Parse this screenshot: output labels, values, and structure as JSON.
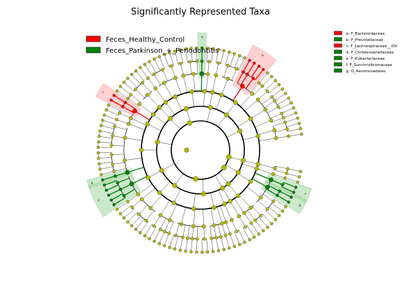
{
  "chart_data": {
    "type": "cladogram",
    "title": "Significantly Represented Taxa",
    "group_legend": [
      {
        "label": "Feces_Healthy_Control",
        "color": "#ff0000"
      },
      {
        "label": "Feces_Parkinson_+_Periodontitis",
        "color": "#008000"
      }
    ],
    "taxa_legend": [
      {
        "letter": "a",
        "label": "a: F_Bacteroidaceae",
        "color": "#ff0000"
      },
      {
        "letter": "b",
        "label": "b: F_Prevotellaceae",
        "color": "#008000"
      },
      {
        "letter": "c",
        "label": "c: F_Lachnospiraceae__XIV",
        "color": "#ff0000"
      },
      {
        "letter": "d",
        "label": "d: F_Christensenellaceae",
        "color": "#008000"
      },
      {
        "letter": "e",
        "label": "e: F_Eubacteriaceae",
        "color": "#008000"
      },
      {
        "letter": "f",
        "label": "f: F_Succinivibrionaceae",
        "color": "#008000"
      },
      {
        "letter": "g",
        "label": "g: O_Aeromonadales",
        "color": "#008000"
      }
    ],
    "highlighted_clades": [
      {
        "letter": "a",
        "group": "Feces_Healthy_Control"
      },
      {
        "letter": "b",
        "group": "Feces_Parkinson_+_Periodontitis"
      },
      {
        "letter": "c",
        "group": "Feces_Healthy_Control"
      },
      {
        "letter": "d",
        "group": "Feces_Parkinson_+_Periodontitis"
      },
      {
        "letter": "e",
        "group": "Feces_Parkinson_+_Periodontitis"
      },
      {
        "letter": "f",
        "group": "Feces_Parkinson_+_Periodontitis"
      },
      {
        "letter": "g",
        "group": "Feces_Parkinson_+_Periodontitis"
      }
    ],
    "colors": {
      "healthy": "#ff0000",
      "parkinson": "#008000",
      "nonsignificant": "#b5b800",
      "healthy_shade": "#ffb3b3",
      "parkinson_shade": "#a9d8a9"
    },
    "axes": "none",
    "grid": false,
    "legend_placement": [
      "top-left",
      "top-right"
    ]
  }
}
